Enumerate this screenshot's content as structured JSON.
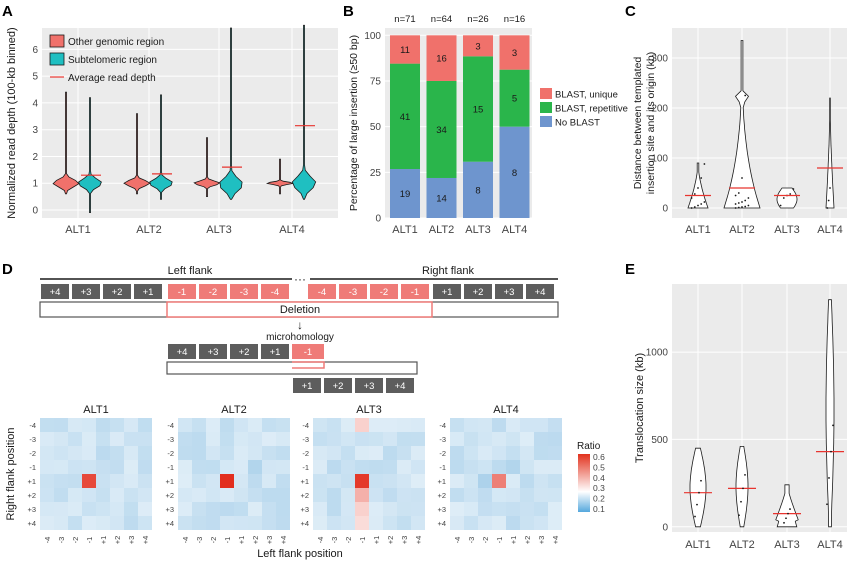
{
  "panels": {
    "A": "A",
    "B": "B",
    "C": "C",
    "D": "D",
    "E": "E"
  },
  "colors": {
    "red": "#f0716b",
    "teal": "#1fbfc1",
    "green": "#2ab54b",
    "blue": "#6e95ce",
    "mean_line": "#e8342f",
    "panel_bg": "#ebebeb",
    "grey_box": "#5d5d5d",
    "del_box": "#ef7b78"
  },
  "chart_data": [
    {
      "id": "A",
      "type": "violin",
      "ylabel": "Normalized read depth (100-kb binned)",
      "categories": [
        "ALT1",
        "ALT2",
        "ALT3",
        "ALT4"
      ],
      "ylim": [
        -0.3,
        6.8
      ],
      "yticks": [
        0,
        1,
        2,
        3,
        4,
        5,
        6
      ],
      "legend": [
        "Other genomic region",
        "Subtelomeric region",
        "Average read depth"
      ],
      "series": [
        {
          "name": "Other genomic region",
          "median": [
            1.0,
            1.0,
            1.0,
            1.0
          ],
          "range": [
            [
              0.6,
              4.4
            ],
            [
              0.6,
              3.6
            ],
            [
              0.5,
              2.7
            ],
            [
              0.6,
              1.9
            ]
          ]
        },
        {
          "name": "Subtelomeric region",
          "median": [
            1.0,
            1.0,
            0.95,
            1.0
          ],
          "range": [
            [
              -0.1,
              4.2
            ],
            [
              0.4,
              4.3
            ],
            [
              0.4,
              6.8
            ],
            [
              0.4,
              6.9
            ]
          ]
        }
      ],
      "average_read_depth": [
        1.3,
        1.35,
        1.6,
        3.15
      ]
    },
    {
      "id": "B",
      "type": "bar",
      "stacked": true,
      "ylabel": "Percentage of large insertion (≥50 bp)",
      "categories": [
        "ALT1",
        "ALT2",
        "ALT3",
        "ALT4"
      ],
      "counts": [
        "n=71",
        "n=64",
        "n=26",
        "n=16"
      ],
      "ylim": [
        0,
        100
      ],
      "yticks": [
        0,
        25,
        50,
        75,
        100
      ],
      "series": [
        {
          "name": "No BLAST",
          "values": [
            19,
            14,
            8,
            8
          ],
          "pct": [
            26.8,
            21.9,
            30.8,
            50.0
          ]
        },
        {
          "name": "BLAST, repetitive",
          "values": [
            41,
            34,
            15,
            5
          ],
          "pct": [
            57.7,
            53.1,
            57.7,
            31.2
          ]
        },
        {
          "name": "BLAST, unique",
          "values": [
            11,
            16,
            3,
            3
          ],
          "pct": [
            15.5,
            25.0,
            11.5,
            18.8
          ]
        }
      ],
      "legend": [
        "BLAST, unique",
        "BLAST, repetitive",
        "No BLAST"
      ]
    },
    {
      "id": "C",
      "type": "violin",
      "ylabel": "Distance between templated insertion site and its origin (kb)",
      "ylabel_lines": [
        "Distance between templated",
        "insertion site and its origin (kb)"
      ],
      "categories": [
        "ALT1",
        "ALT2",
        "ALT3",
        "ALT4"
      ],
      "ylim": [
        -20,
        360
      ],
      "yticks": [
        0,
        100,
        200,
        300
      ],
      "range": [
        [
          0,
          90
        ],
        [
          0,
          335
        ],
        [
          0,
          40
        ],
        [
          0,
          220
        ]
      ],
      "mean": [
        25,
        40,
        25,
        80
      ],
      "points": [
        [
          0,
          2,
          5,
          8,
          12,
          20,
          28,
          40,
          60,
          88
        ],
        [
          0,
          1,
          2,
          3,
          5,
          8,
          10,
          12,
          15,
          20,
          25,
          30,
          60,
          225
        ],
        [
          5,
          20,
          25,
          28,
          38
        ],
        [
          0,
          15,
          40
        ]
      ]
    },
    {
      "id": "D",
      "type": "heatmap",
      "xlabel": "Left flank position",
      "ylabel": "Right flank position",
      "titles": [
        "ALT1",
        "ALT2",
        "ALT3",
        "ALT4"
      ],
      "ticks": [
        "-4",
        "-3",
        "-2",
        "-1",
        "+1",
        "+2",
        "+3",
        "+4"
      ],
      "colorbar": {
        "title": "Ratio",
        "min": 0.05,
        "max": 0.6,
        "ticks": [
          "0.6",
          "0.5",
          "0.4",
          "0.3",
          "0.2",
          "0.1"
        ]
      },
      "highlights": [
        {
          "panel": "ALT1",
          "x": "-1",
          "y": "+1",
          "value": 0.55
        },
        {
          "panel": "ALT2",
          "x": "-1",
          "y": "+1",
          "value": 0.6
        },
        {
          "panel": "ALT3",
          "x": "-1",
          "y": "+1",
          "value": 0.58
        },
        {
          "panel": "ALT4",
          "x": "-1",
          "y": "+1",
          "value": 0.45
        }
      ]
    },
    {
      "id": "E",
      "type": "violin",
      "ylabel": "Translocation size (kb)",
      "categories": [
        "ALT1",
        "ALT2",
        "ALT3",
        "ALT4"
      ],
      "ylim": [
        -30,
        1390
      ],
      "yticks": [
        0,
        500,
        1000
      ],
      "range": [
        [
          0,
          450
        ],
        [
          0,
          460
        ],
        [
          0,
          240
        ],
        [
          0,
          1300
        ]
      ],
      "mean": [
        195,
        220,
        75,
        430
      ]
    }
  ],
  "schematic": {
    "left_flank": "Left flank",
    "right_flank": "Right flank",
    "ellipsis": "···",
    "left_boxes": [
      "+4",
      "+3",
      "+2",
      "+1"
    ],
    "del_left": [
      "-1",
      "-2",
      "-3",
      "-4"
    ],
    "del_right": [
      "-4",
      "-3",
      "-2",
      "-1"
    ],
    "right_boxes": [
      "+1",
      "+2",
      "+3",
      "+4"
    ],
    "deletion": "Deletion",
    "arrow": "↓",
    "microhomology": "microhomology",
    "mh_top": [
      "+4",
      "+3",
      "+2",
      "+1"
    ],
    "mh_del": "-1",
    "mh_bottom": [
      "+1",
      "+2",
      "+3",
      "+4"
    ]
  }
}
